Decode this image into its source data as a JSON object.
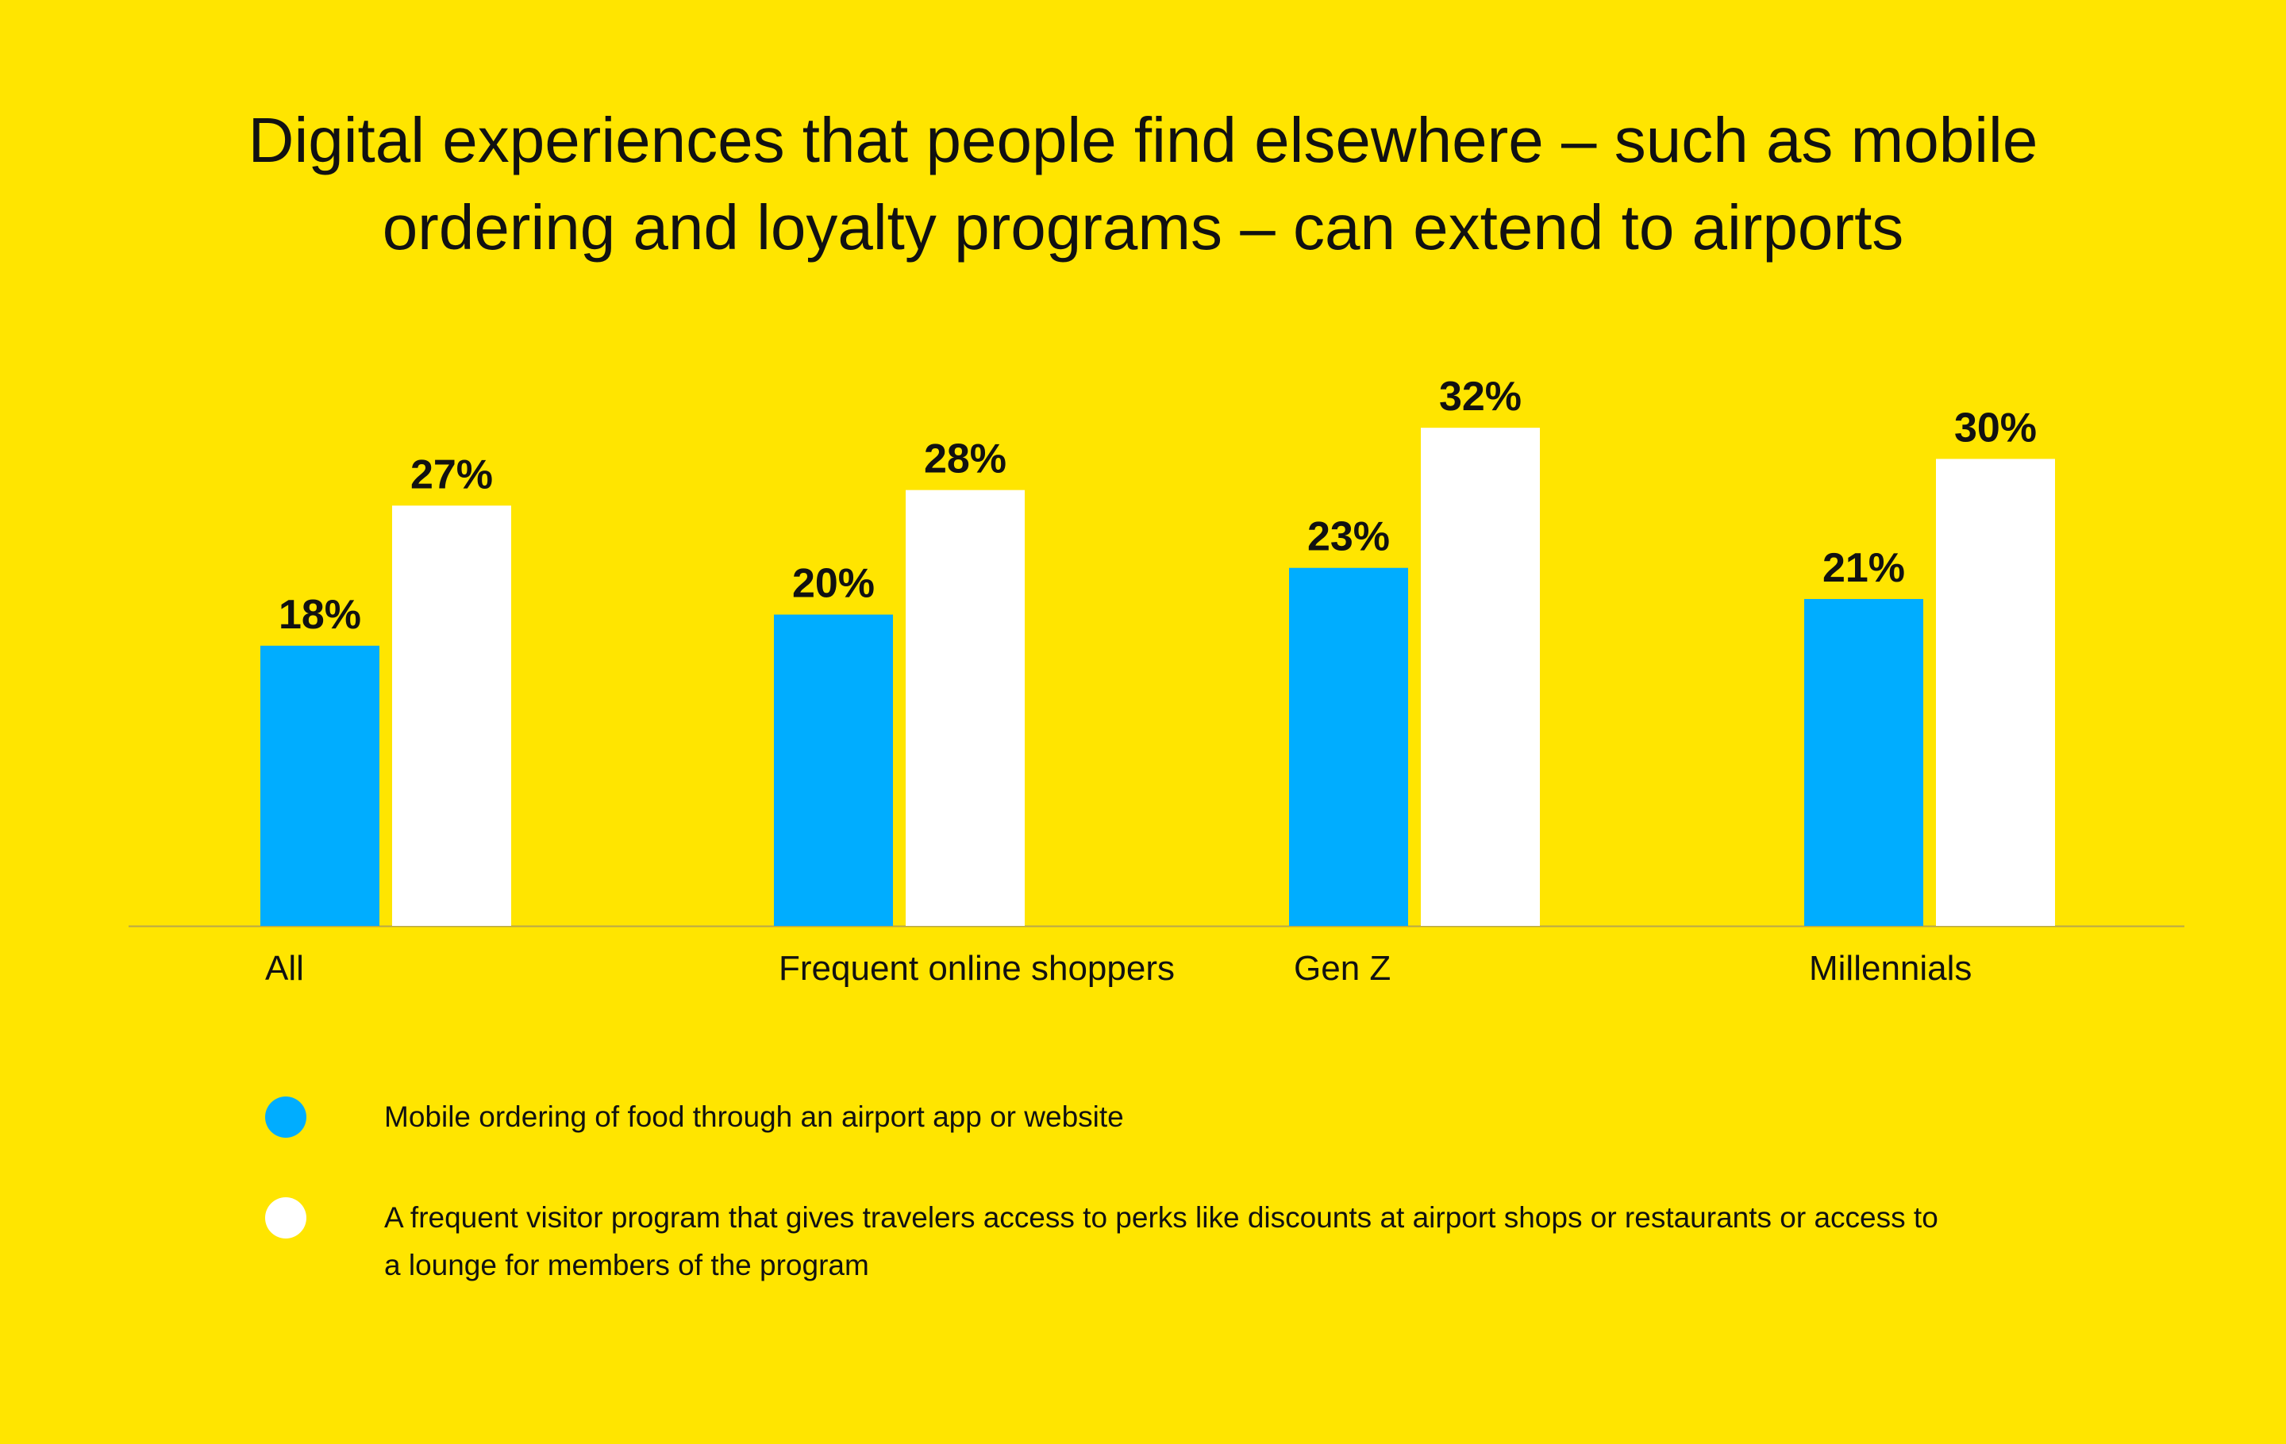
{
  "colors": {
    "background": "#FFE500",
    "series_1": "#00ADFF",
    "series_2": "#FFFFFF",
    "text": "#111111",
    "axis": "#B8A84A"
  },
  "chart_data": {
    "type": "bar",
    "title_lines": [
      "Digital experiences that people find elsewhere – such as mobile",
      "ordering and loyalty programs – can extend to airports"
    ],
    "categories": [
      "All",
      "Frequent online shoppers",
      "Gen Z",
      "Millennials"
    ],
    "series": [
      {
        "name": "Mobile ordering of food through an airport app or website",
        "values": [
          18,
          20,
          23,
          21
        ],
        "labels": [
          "18%",
          "20%",
          "23%",
          "21%"
        ]
      },
      {
        "name": "A frequent visitor program that gives travelers access to perks like discounts at airport shops or restaurants or access to a lounge for members of the program",
        "name_lines": [
          "A frequent visitor program that gives travelers access to perks like discounts at airport shops or restaurants or access to",
          "a lounge for members of the program"
        ],
        "values": [
          27,
          28,
          32,
          30
        ],
        "labels": [
          "27%",
          "28%",
          "32%",
          "30%"
        ]
      }
    ],
    "unit": "%",
    "ylim": [
      0,
      33
    ],
    "grid": false,
    "legend_position": "bottom-left"
  }
}
